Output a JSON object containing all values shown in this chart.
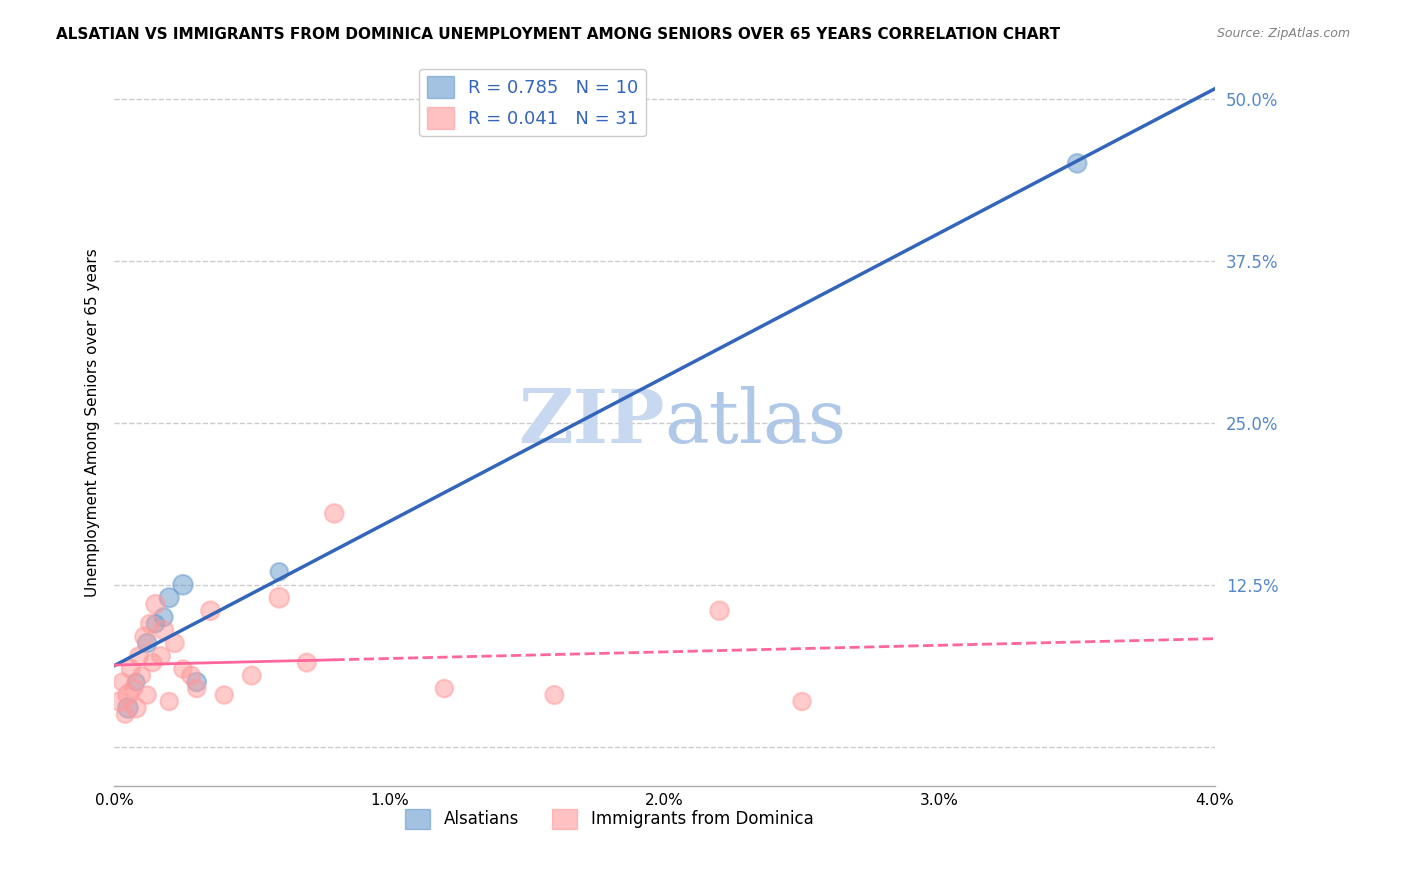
{
  "title": "ALSATIAN VS IMMIGRANTS FROM DOMINICA UNEMPLOYMENT AMONG SENIORS OVER 65 YEARS CORRELATION CHART",
  "source": "Source: ZipAtlas.com",
  "ylabel": "Unemployment Among Seniors over 65 years",
  "xlabel_vals": [
    0.0,
    1.0,
    2.0,
    3.0,
    4.0
  ],
  "ylabel_vals": [
    0.0,
    12.5,
    25.0,
    37.5,
    50.0
  ],
  "xlim": [
    0.0,
    4.0
  ],
  "ylim": [
    -3.0,
    53.0
  ],
  "blue_label": "Alsatians",
  "pink_label": "Immigrants from Dominica",
  "blue_R": "R = 0.785",
  "blue_N": "N = 10",
  "pink_R": "R = 0.041",
  "pink_N": "N = 31",
  "blue_color": "#6699CC",
  "pink_color": "#FF9999",
  "blue_line_color": "#3366BB",
  "pink_line_color": "#FF6699",
  "watermark_zip": "ZIP",
  "watermark_atlas": "atlas",
  "background_color": "#FFFFFF",
  "grid_color": "#CCCCCC",
  "right_axis_color": "#5588CC",
  "alsatian_x": [
    0.05,
    0.08,
    0.12,
    0.15,
    0.18,
    0.2,
    0.25,
    0.3,
    0.6,
    3.5
  ],
  "alsatian_y": [
    3.0,
    5.0,
    8.0,
    9.5,
    10.0,
    11.5,
    12.5,
    5.0,
    13.5,
    45.0
  ],
  "dominica_x": [
    0.02,
    0.03,
    0.04,
    0.05,
    0.06,
    0.07,
    0.08,
    0.09,
    0.1,
    0.11,
    0.12,
    0.13,
    0.14,
    0.15,
    0.17,
    0.18,
    0.2,
    0.22,
    0.25,
    0.28,
    0.3,
    0.35,
    0.4,
    0.5,
    0.6,
    0.7,
    0.8,
    1.2,
    1.6,
    2.2,
    2.5
  ],
  "dominica_y": [
    3.5,
    5.0,
    2.5,
    4.0,
    6.0,
    4.5,
    3.0,
    7.0,
    5.5,
    8.5,
    4.0,
    9.5,
    6.5,
    11.0,
    7.0,
    9.0,
    3.5,
    8.0,
    6.0,
    5.5,
    4.5,
    10.5,
    4.0,
    5.5,
    11.5,
    6.5,
    18.0,
    4.5,
    4.0,
    10.5,
    3.5
  ],
  "alsatian_sizes": [
    200,
    150,
    180,
    160,
    170,
    190,
    200,
    180,
    160,
    180
  ],
  "dominica_sizes": [
    180,
    160,
    150,
    200,
    170,
    160,
    190,
    170,
    150,
    180,
    160,
    170,
    160,
    180,
    170,
    190,
    160,
    170,
    160,
    170,
    160,
    180,
    160,
    170,
    200,
    170,
    180,
    160,
    170,
    180,
    160
  ]
}
